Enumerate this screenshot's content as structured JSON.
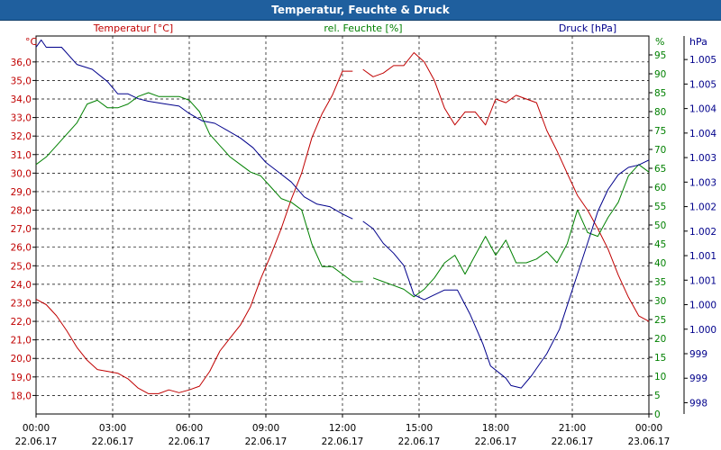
{
  "title": "Temperatur, Feuchte & Druck",
  "chart_data": {
    "type": "line",
    "title": "Temperatur, Feuchte & Druck",
    "xlabel": "",
    "x_ticks": [
      {
        "time": "00:00",
        "date": "22.06.17"
      },
      {
        "time": "03:00",
        "date": "22.06.17"
      },
      {
        "time": "06:00",
        "date": "22.06.17"
      },
      {
        "time": "09:00",
        "date": "22.06.17"
      },
      {
        "time": "12:00",
        "date": "22.06.17"
      },
      {
        "time": "15:00",
        "date": "22.06.17"
      },
      {
        "time": "18:00",
        "date": "22.06.17"
      },
      {
        "time": "21:00",
        "date": "22.06.17"
      },
      {
        "time": "00:00",
        "date": "23.06.17"
      }
    ],
    "xlim": [
      0,
      24
    ],
    "grid": true,
    "axes": {
      "temperature": {
        "label": "Temperatur [°C]",
        "unit": "°C",
        "color": "#c00000",
        "ylim": [
          17.0,
          37.4
        ],
        "ticks": [
          "18,0",
          "19,0",
          "20,0",
          "21,0",
          "22,0",
          "23,0",
          "24,0",
          "25,0",
          "26,0",
          "27,0",
          "28,0",
          "29,0",
          "30,0",
          "31,0",
          "32,0",
          "33,0",
          "34,0",
          "35,0",
          "36,0"
        ],
        "tick_values": [
          18,
          19,
          20,
          21,
          22,
          23,
          24,
          25,
          26,
          27,
          28,
          29,
          30,
          31,
          32,
          33,
          34,
          35,
          36
        ]
      },
      "humidity": {
        "label": "rel. Feuchte [%]",
        "unit": "%",
        "color": "#008000",
        "ylim": [
          0,
          100
        ],
        "ticks": [
          "0",
          "5",
          "10",
          "15",
          "20",
          "25",
          "30",
          "35",
          "40",
          "45",
          "50",
          "55",
          "60",
          "65",
          "70",
          "75",
          "80",
          "85",
          "90",
          "95"
        ],
        "tick_values": [
          0,
          5,
          10,
          15,
          20,
          25,
          30,
          35,
          40,
          45,
          50,
          55,
          60,
          65,
          70,
          75,
          80,
          85,
          90,
          95
        ]
      },
      "pressure": {
        "label": "Druck [hPa]",
        "unit": "hPa",
        "color": "#00008b",
        "ylim": [
          997.77,
          1005.48
        ],
        "ticks": [
          "998",
          "999",
          "999",
          "1.000",
          "1.000",
          "1.001",
          "1.001",
          "1.002",
          "1.002",
          "1.003",
          "1.003",
          "1.004",
          "1.004",
          "1.005",
          "1.005"
        ],
        "tick_values": [
          998,
          998.5,
          999,
          999.5,
          1000,
          1000.5,
          1001,
          1001.5,
          1002,
          1002.5,
          1003,
          1003.5,
          1004,
          1004.5,
          1005
        ]
      }
    },
    "series": [
      {
        "name": "Temperatur [°C]",
        "axis": "temperature",
        "color": "#c00000",
        "segments": [
          [
            [
              0.0,
              23.2
            ],
            [
              0.4,
              22.9
            ],
            [
              0.8,
              22.3
            ],
            [
              1.2,
              21.5
            ],
            [
              1.6,
              20.6
            ],
            [
              2.0,
              19.9
            ],
            [
              2.4,
              19.4
            ],
            [
              2.8,
              19.3
            ],
            [
              3.2,
              19.2
            ],
            [
              3.6,
              18.9
            ],
            [
              4.0,
              18.4
            ],
            [
              4.4,
              18.1
            ],
            [
              4.8,
              18.1
            ],
            [
              5.2,
              18.3
            ],
            [
              5.6,
              18.15
            ],
            [
              6.0,
              18.3
            ],
            [
              6.4,
              18.5
            ],
            [
              6.8,
              19.3
            ],
            [
              7.2,
              20.4
            ],
            [
              7.6,
              21.1
            ],
            [
              8.0,
              21.8
            ],
            [
              8.4,
              22.8
            ],
            [
              8.8,
              24.3
            ],
            [
              9.2,
              25.6
            ],
            [
              9.6,
              27.0
            ],
            [
              10.0,
              28.6
            ],
            [
              10.4,
              30.0
            ],
            [
              10.8,
              31.9
            ],
            [
              11.2,
              33.2
            ],
            [
              11.6,
              34.2
            ],
            [
              12.0,
              35.5
            ],
            [
              12.4,
              35.5
            ]
          ],
          [
            [
              12.8,
              35.6
            ],
            [
              13.2,
              35.2
            ],
            [
              13.6,
              35.4
            ],
            [
              14.0,
              35.8
            ],
            [
              14.4,
              35.8
            ],
            [
              14.8,
              36.5
            ],
            [
              15.2,
              36.0
            ],
            [
              15.6,
              35.0
            ],
            [
              16.0,
              33.5
            ],
            [
              16.4,
              32.6
            ],
            [
              16.8,
              33.3
            ],
            [
              17.2,
              33.3
            ],
            [
              17.6,
              32.6
            ],
            [
              18.0,
              34.0
            ],
            [
              18.4,
              33.8
            ],
            [
              18.8,
              34.2
            ],
            [
              19.2,
              34.0
            ],
            [
              19.6,
              33.8
            ],
            [
              20.0,
              32.3
            ],
            [
              20.4,
              31.2
            ],
            [
              20.8,
              30.0
            ],
            [
              21.2,
              28.8
            ],
            [
              21.6,
              28.0
            ],
            [
              22.0,
              27.0
            ],
            [
              22.4,
              25.9
            ],
            [
              22.8,
              24.5
            ],
            [
              23.2,
              23.3
            ],
            [
              23.6,
              22.3
            ],
            [
              24.0,
              22.0
            ]
          ]
        ]
      },
      {
        "name": "rel. Feuchte [%]",
        "axis": "humidity",
        "color": "#008000",
        "segments": [
          [
            [
              0.0,
              66
            ],
            [
              0.4,
              68
            ],
            [
              0.8,
              71
            ],
            [
              1.2,
              74
            ],
            [
              1.6,
              77
            ],
            [
              2.0,
              82
            ],
            [
              2.4,
              83
            ],
            [
              2.8,
              81
            ],
            [
              3.2,
              81
            ],
            [
              3.6,
              82
            ],
            [
              4.0,
              84
            ],
            [
              4.4,
              85
            ],
            [
              4.8,
              84
            ],
            [
              5.2,
              84
            ],
            [
              5.6,
              84
            ],
            [
              6.0,
              83
            ],
            [
              6.4,
              80
            ],
            [
              6.8,
              74
            ],
            [
              7.2,
              71
            ],
            [
              7.6,
              68
            ],
            [
              8.0,
              66
            ],
            [
              8.4,
              64
            ],
            [
              8.8,
              63
            ],
            [
              9.2,
              60
            ],
            [
              9.6,
              57
            ],
            [
              10.0,
              56
            ],
            [
              10.4,
              54
            ],
            [
              10.8,
              45
            ],
            [
              11.2,
              39
            ],
            [
              11.6,
              39
            ],
            [
              12.0,
              37
            ],
            [
              12.4,
              35
            ],
            [
              12.8,
              35
            ]
          ],
          [
            [
              13.2,
              36
            ],
            [
              13.6,
              35
            ],
            [
              14.0,
              34
            ],
            [
              14.4,
              33
            ],
            [
              14.8,
              31
            ],
            [
              15.2,
              33
            ],
            [
              15.6,
              36
            ],
            [
              16.0,
              40
            ],
            [
              16.4,
              42
            ],
            [
              16.8,
              37
            ],
            [
              17.2,
              42
            ],
            [
              17.6,
              47
            ],
            [
              18.0,
              42
            ],
            [
              18.4,
              46
            ],
            [
              18.8,
              40
            ],
            [
              19.2,
              40
            ],
            [
              19.6,
              41
            ],
            [
              20.0,
              43
            ],
            [
              20.4,
              40
            ],
            [
              20.8,
              45
            ],
            [
              21.2,
              54
            ],
            [
              21.6,
              48
            ],
            [
              22.0,
              47
            ],
            [
              22.4,
              52
            ],
            [
              22.8,
              56
            ],
            [
              23.2,
              63
            ],
            [
              23.6,
              66
            ],
            [
              24.0,
              64
            ]
          ]
        ]
      },
      {
        "name": "Druck [hPa]",
        "axis": "pressure",
        "color": "#00008b",
        "segments": [
          [
            [
              0.0,
              1005.25
            ],
            [
              0.2,
              1005.4
            ],
            [
              0.4,
              1005.25
            ],
            [
              1.0,
              1005.25
            ],
            [
              1.6,
              1004.9
            ],
            [
              2.2,
              1004.8
            ],
            [
              2.8,
              1004.55
            ],
            [
              3.2,
              1004.3
            ],
            [
              3.6,
              1004.3
            ],
            [
              4.0,
              1004.2
            ],
            [
              4.4,
              1004.15
            ],
            [
              5.0,
              1004.1
            ],
            [
              5.6,
              1004.05
            ],
            [
              6.0,
              1003.9
            ],
            [
              6.5,
              1003.75
            ],
            [
              7.0,
              1003.7
            ],
            [
              7.5,
              1003.55
            ],
            [
              8.0,
              1003.4
            ],
            [
              8.5,
              1003.2
            ],
            [
              9.0,
              1002.9
            ],
            [
              9.5,
              1002.7
            ],
            [
              10.0,
              1002.5
            ],
            [
              10.5,
              1002.2
            ],
            [
              11.0,
              1002.05
            ],
            [
              11.5,
              1002.0
            ],
            [
              12.0,
              1001.85
            ],
            [
              12.4,
              1001.75
            ]
          ],
          [
            [
              12.8,
              1001.7
            ],
            [
              13.2,
              1001.55
            ],
            [
              13.6,
              1001.25
            ],
            [
              14.0,
              1001.05
            ],
            [
              14.4,
              1000.8
            ],
            [
              14.8,
              1000.2
            ],
            [
              15.2,
              1000.1
            ],
            [
              15.6,
              1000.2
            ],
            [
              16.0,
              1000.3
            ],
            [
              16.5,
              1000.3
            ],
            [
              17.0,
              999.8
            ],
            [
              17.5,
              999.2
            ],
            [
              17.8,
              998.75
            ],
            [
              18.4,
              998.5
            ],
            [
              18.6,
              998.35
            ],
            [
              19.0,
              998.3
            ],
            [
              19.4,
              998.55
            ],
            [
              20.0,
              999.0
            ],
            [
              20.5,
              999.5
            ],
            [
              21.0,
              1000.3
            ],
            [
              21.5,
              1001.1
            ],
            [
              22.0,
              1001.9
            ],
            [
              22.4,
              1002.35
            ],
            [
              22.8,
              1002.65
            ],
            [
              23.2,
              1002.8
            ],
            [
              23.6,
              1002.85
            ],
            [
              24.0,
              1002.95
            ]
          ]
        ]
      }
    ]
  }
}
